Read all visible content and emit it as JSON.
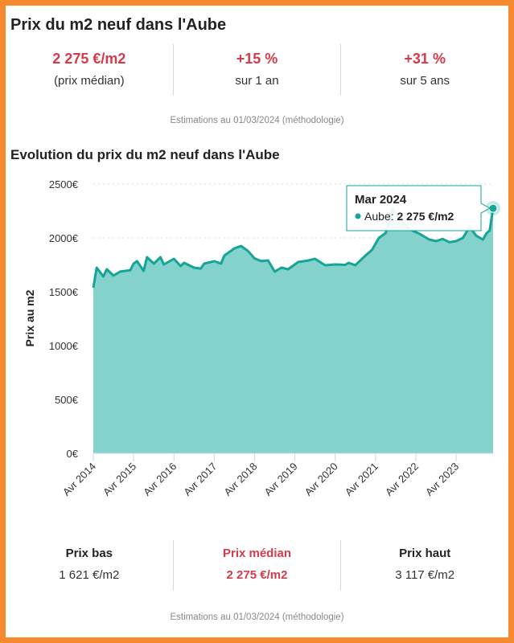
{
  "header": {
    "title": "Prix du m2 neuf dans l'Aube"
  },
  "summary": [
    {
      "value": "2 275 €/m2",
      "label": "(prix médian)"
    },
    {
      "value": "+15 %",
      "label": "sur 1 an"
    },
    {
      "value": "+31 %",
      "label": "sur 5 ans"
    }
  ],
  "note_top": "Estimations au 01/03/2024 (méthodologie)",
  "chart_title": "Evolution du prix du m2 neuf dans l'Aube",
  "chart_data": {
    "type": "area",
    "title": "Evolution du prix du m2 neuf dans l'Aube",
    "ylabel": "Prix au m2",
    "xlabel": "",
    "ylim": [
      0,
      2500
    ],
    "yticks": [
      "0€",
      "500€",
      "1000€",
      "1500€",
      "2000€",
      "2500€"
    ],
    "ytick_values": [
      0,
      500,
      1000,
      1500,
      2000,
      2500
    ],
    "xticks": [
      "Avr 2014",
      "Avr 2015",
      "Avr 2016",
      "Avr 2017",
      "Avr 2018",
      "Avr 2019",
      "Avr 2020",
      "Avr 2021",
      "Avr 2022",
      "Avr 2023"
    ],
    "grid": true,
    "colors": {
      "line": "#14a596",
      "fill": "#84d2cc"
    },
    "series": [
      {
        "name": "Aube",
        "points": [
          [
            "2014-04",
            1537
          ],
          [
            "2014-05",
            1724
          ],
          [
            "2014-07",
            1642
          ],
          [
            "2014-08",
            1709
          ],
          [
            "2014-10",
            1650
          ],
          [
            "2014-12",
            1687
          ],
          [
            "2015-03",
            1700
          ],
          [
            "2015-04",
            1761
          ],
          [
            "2015-05",
            1784
          ],
          [
            "2015-07",
            1694
          ],
          [
            "2015-08",
            1821
          ],
          [
            "2015-10",
            1761
          ],
          [
            "2015-12",
            1821
          ],
          [
            "2016-01",
            1754
          ],
          [
            "2016-04",
            1806
          ],
          [
            "2016-06",
            1739
          ],
          [
            "2016-07",
            1769
          ],
          [
            "2016-10",
            1724
          ],
          [
            "2016-12",
            1716
          ],
          [
            "2017-01",
            1761
          ],
          [
            "2017-04",
            1784
          ],
          [
            "2017-06",
            1761
          ],
          [
            "2017-07",
            1836
          ],
          [
            "2017-10",
            1903
          ],
          [
            "2017-12",
            1925
          ],
          [
            "2018-02",
            1880
          ],
          [
            "2018-04",
            1810
          ],
          [
            "2018-06",
            1784
          ],
          [
            "2018-08",
            1791
          ],
          [
            "2018-10",
            1687
          ],
          [
            "2018-12",
            1724
          ],
          [
            "2019-02",
            1709
          ],
          [
            "2019-05",
            1776
          ],
          [
            "2019-08",
            1790
          ],
          [
            "2019-10",
            1806
          ],
          [
            "2020-01",
            1746
          ],
          [
            "2020-04",
            1754
          ],
          [
            "2020-07",
            1750
          ],
          [
            "2020-08",
            1769
          ],
          [
            "2020-10",
            1746
          ],
          [
            "2021-01",
            1836
          ],
          [
            "2021-03",
            1890
          ],
          [
            "2021-05",
            2000
          ],
          [
            "2021-07",
            2045
          ],
          [
            "2021-09",
            2270
          ],
          [
            "2021-11",
            2180
          ],
          [
            "2022-02",
            2080
          ],
          [
            "2022-05",
            2040
          ],
          [
            "2022-08",
            1985
          ],
          [
            "2022-10",
            1970
          ],
          [
            "2022-12",
            1990
          ],
          [
            "2023-02",
            1960
          ],
          [
            "2023-04",
            1970
          ],
          [
            "2023-06",
            2000
          ],
          [
            "2023-08",
            2100
          ],
          [
            "2023-10",
            2020
          ],
          [
            "2023-12",
            1985
          ],
          [
            "2024-01",
            2040
          ],
          [
            "2024-02",
            2070
          ],
          [
            "2024-03",
            2275
          ]
        ]
      }
    ],
    "tooltip": {
      "title": "Mar 2024",
      "series": "Aube: ",
      "value": "2 275 €/m2"
    }
  },
  "bottom": [
    {
      "label": "Prix bas",
      "value": "1 621 €/m2"
    },
    {
      "label": "Prix médian",
      "value": "2 275 €/m2"
    },
    {
      "label": "Prix haut",
      "value": "3 117 €/m2"
    }
  ],
  "note_bottom": "Estimations au 01/03/2024 (méthodologie)"
}
